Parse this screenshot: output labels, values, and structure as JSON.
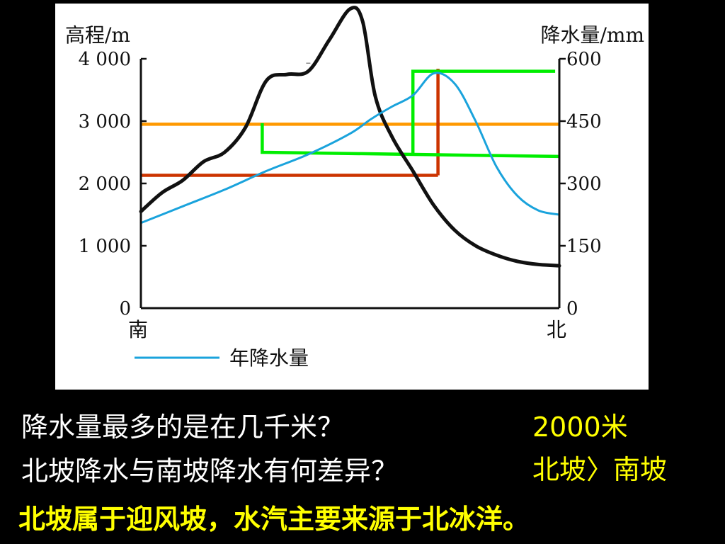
{
  "chart_data": {
    "type": "line",
    "left_axis": {
      "label": "高程/m",
      "ticks": [
        0,
        1000,
        2000,
        3000,
        4000
      ],
      "tick_labels": [
        "0",
        "1 000",
        "2 000",
        "3 000",
        "4 000"
      ],
      "range": [
        0,
        4000
      ]
    },
    "right_axis": {
      "label": "降水量/mm",
      "ticks": [
        0,
        150,
        300,
        450,
        600
      ],
      "tick_labels": [
        "0",
        "150",
        "300",
        "450",
        "600"
      ],
      "range": [
        0,
        600
      ]
    },
    "x_labels": {
      "left": "南",
      "right": "北"
    },
    "series": [
      {
        "axis": "left",
        "color": "#111111",
        "x": [
          0,
          0.05,
          0.1,
          0.15,
          0.2,
          0.25,
          0.3,
          0.35,
          0.4,
          0.45,
          0.5,
          0.53,
          0.56,
          0.6,
          0.65,
          0.7,
          0.75,
          0.8,
          0.85,
          0.9,
          0.95,
          1.0
        ],
        "values": [
          1550,
          1850,
          2050,
          2350,
          2500,
          2900,
          3650,
          3750,
          3800,
          4300,
          4800,
          4600,
          3400,
          2750,
          2200,
          1650,
          1250,
          1000,
          850,
          750,
          700,
          680
        ]
      },
      {
        "name": "年降水量",
        "axis": "right",
        "color": "#1aa3dc",
        "x": [
          0,
          0.1,
          0.2,
          0.3,
          0.4,
          0.5,
          0.55,
          0.6,
          0.65,
          0.7,
          0.75,
          0.8,
          0.85,
          0.9,
          0.95,
          1.0
        ],
        "values": [
          205,
          245,
          285,
          330,
          370,
          420,
          455,
          485,
          512,
          565,
          540,
          450,
          340,
          270,
          235,
          225
        ]
      }
    ],
    "annotations": [
      {
        "type": "hline",
        "axis": "left",
        "value": 2950,
        "x_range": [
          0,
          1.0
        ],
        "color": "#ff9900"
      },
      {
        "type": "hline",
        "axis": "left",
        "value": 2130,
        "x_range": [
          0,
          0.71
        ],
        "color": "#cc3300"
      },
      {
        "type": "vline",
        "x": 0.71,
        "left_value_range": [
          2130,
          3840
        ],
        "color": "#cc3300"
      },
      {
        "type": "polyline",
        "axis": "right",
        "points": [
          [
            0.29,
            445
          ],
          [
            0.29,
            375
          ],
          [
            1.0,
            365
          ]
        ],
        "color": "#00ee00"
      },
      {
        "type": "polyline",
        "axis": "right",
        "points": [
          [
            0.65,
            370
          ],
          [
            0.65,
            570
          ],
          [
            0.99,
            570
          ]
        ],
        "color": "#00ee00"
      },
      {
        "type": "tick_mark",
        "axis": "left",
        "value": 3930,
        "x": 0.4,
        "color": "#555555"
      }
    ],
    "legend": {
      "label": "年降水量",
      "color": "#1aa3dc",
      "placement": "bottom-left"
    }
  },
  "qa": {
    "q1": "降水量最多的是在几千米？",
    "a1": "2000米",
    "q2": "北坡降水与南坡降水有何差异？",
    "a2": "北坡〉南坡",
    "conclusion": "北坡属于迎风坡，水汽主要来源于北冰洋。"
  }
}
